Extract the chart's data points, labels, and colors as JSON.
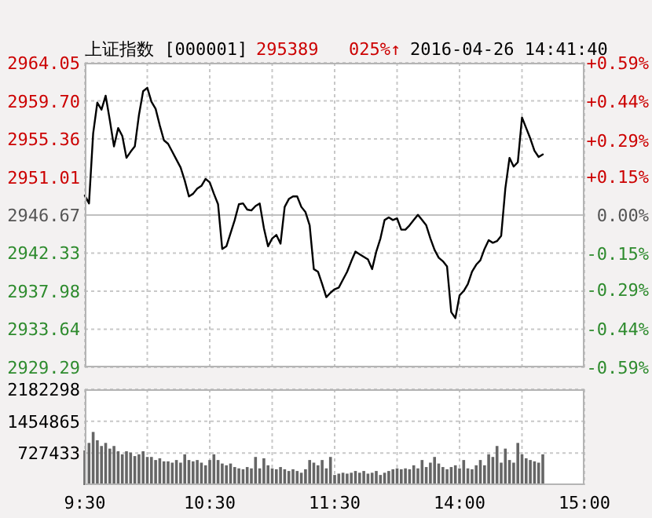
{
  "chart_data": [
    {
      "type": "line",
      "title": "上证指数 [000001]",
      "annotations": [
        "295389",
        "025%↑",
        "2016-04-26 14:41:40"
      ],
      "categories": [
        null,
        null,
        null,
        null,
        null,
        null,
        null,
        null,
        null,
        null,
        null,
        null,
        null,
        null,
        null,
        null,
        null,
        null,
        null,
        null,
        null,
        null,
        null,
        null,
        null,
        null,
        null,
        null,
        null,
        null,
        null,
        null,
        null,
        null,
        null,
        null,
        null,
        null,
        null,
        null,
        null,
        null,
        null,
        null,
        null,
        null,
        null,
        null,
        null,
        null,
        null,
        null,
        null,
        null,
        null,
        null,
        null,
        null,
        null,
        null,
        null,
        null,
        null,
        null,
        null,
        null,
        null,
        null,
        null,
        null,
        null,
        null,
        null,
        null,
        null,
        null,
        null,
        null,
        null,
        null,
        null,
        null,
        null,
        null,
        null,
        null,
        null,
        null,
        null,
        null,
        null,
        null,
        null,
        null,
        null,
        null,
        null,
        null,
        null,
        null,
        null,
        null,
        null,
        null,
        null,
        null,
        null,
        null,
        null,
        null,
        null,
        null,
        null,
        null,
        null,
        null,
        null,
        null,
        null,
        null,
        null
      ],
      "tick_labels": "y",
      "ylim": [
        2929.29,
        2964.05
      ],
      "yticks": [
        {
          "value": 2929.29,
          "label": "2929.29"
        },
        {
          "value": 2933.64,
          "label": "2933.64"
        },
        {
          "value": 2937.98,
          "label": "2937.98"
        },
        {
          "value": 2942.33,
          "label": "2942.33"
        },
        {
          "value": 2946.67,
          "label": "2946.67"
        },
        {
          "value": 2951.01,
          "label": "2951.01"
        },
        {
          "value": 2955.36,
          "label": "2955.36"
        },
        {
          "value": 2959.7,
          "label": "2959.70"
        },
        {
          "value": 2964.05,
          "label": "2964.05"
        }
      ],
      "y2lim": [
        -0.59,
        0.59
      ],
      "y2ticks": [
        {
          "value": -0.59,
          "label": "-0.59%"
        },
        {
          "value": -0.44,
          "label": "-0.44%"
        },
        {
          "value": -0.29,
          "label": "-0.29%"
        },
        {
          "value": -0.15,
          "label": "-0.15%"
        },
        {
          "value": 0,
          "label": "0.00%"
        },
        {
          "value": 0.15,
          "label": "+0.15%"
        },
        {
          "value": 0.29,
          "label": "+0.29%"
        },
        {
          "value": 0.44,
          "label": "+0.44%"
        },
        {
          "value": 0.59,
          "label": "+0.59%"
        }
      ],
      "grid": true,
      "ref_lines": [
        {
          "axis": "y",
          "value": 2946.67,
          "color": "#c0c0c0"
        }
      ],
      "series": [
        {
          "color": "#000000",
          "values": [
            2948.9,
            2948.0,
            2956.0,
            2959.5,
            2958.7,
            2960.3,
            2957.5,
            2954.5,
            2956.6,
            2955.7,
            2953.2,
            2953.9,
            2954.5,
            2958.1,
            2960.8,
            2961.2,
            2959.6,
            2958.8,
            2956.9,
            2955.2,
            2954.8,
            2953.9,
            2953.0,
            2952.1,
            2950.6,
            2948.8,
            2949.1,
            2949.7,
            2950.0,
            2950.8,
            2950.4,
            2949.1,
            2947.9,
            2942.8,
            2943.1,
            2944.6,
            2946.1,
            2947.9,
            2948.0,
            2947.3,
            2947.2,
            2947.7,
            2948.0,
            2945.2,
            2943.1,
            2944.0,
            2944.4,
            2943.4,
            2947.6,
            2948.5,
            2948.8,
            2948.8,
            2947.6,
            2947.0,
            2945.5,
            2940.5,
            2940.2,
            2938.8,
            2937.3,
            2937.8,
            2938.2,
            2938.4,
            2939.3,
            2940.2,
            2941.4,
            2942.5,
            2942.2,
            2941.9,
            2941.6,
            2940.5,
            2942.5,
            2944.0,
            2946.1,
            2946.4,
            2946.1,
            2946.3,
            2945.0,
            2945.0,
            2945.5,
            2946.1,
            2946.7,
            2946.1,
            2945.5,
            2944.0,
            2942.7,
            2941.8,
            2941.4,
            2940.8,
            2935.6,
            2934.9,
            2937.5,
            2938.0,
            2938.8,
            2940.2,
            2941.0,
            2941.5,
            2942.8,
            2943.8,
            2943.5,
            2943.7,
            2944.3,
            2949.7,
            2953.2,
            2952.2,
            2952.7,
            2957.8,
            2956.6,
            2955.4,
            2954.0,
            2953.3,
            2953.6,
            null,
            null,
            null,
            null,
            null,
            null,
            null,
            null,
            null,
            null
          ]
        }
      ]
    },
    {
      "type": "bar",
      "categories": [
        "9:30",
        null,
        null,
        null,
        null,
        null,
        null,
        null,
        null,
        null,
        null,
        null,
        null,
        null,
        null,
        null,
        null,
        null,
        null,
        null,
        null,
        null,
        null,
        null,
        null,
        null,
        null,
        null,
        null,
        null,
        "10:30",
        null,
        null,
        null,
        null,
        null,
        null,
        null,
        null,
        null,
        null,
        null,
        null,
        null,
        null,
        null,
        null,
        null,
        null,
        null,
        null,
        null,
        null,
        null,
        null,
        null,
        null,
        null,
        null,
        null,
        "11:30",
        null,
        null,
        null,
        null,
        null,
        null,
        null,
        null,
        null,
        null,
        null,
        null,
        null,
        null,
        null,
        null,
        null,
        null,
        null,
        null,
        null,
        null,
        null,
        null,
        null,
        null,
        null,
        null,
        null,
        "14:00",
        null,
        null,
        null,
        null,
        null,
        null,
        null,
        null,
        null,
        null,
        null,
        null,
        null,
        null,
        null,
        null,
        null,
        null,
        null,
        null,
        null,
        null,
        null,
        null,
        null,
        null,
        null,
        null,
        null,
        "15:00"
      ],
      "ylim": [
        0,
        2182298
      ],
      "yticks": [
        727433,
        1454865,
        2182298
      ],
      "grid": true,
      "series": [
        {
          "color": "#666666",
          "values": [
            790000,
            960000,
            1210000,
            1020000,
            890000,
            960000,
            830000,
            890000,
            770000,
            700000,
            770000,
            740000,
            660000,
            700000,
            770000,
            640000,
            640000,
            570000,
            610000,
            540000,
            540000,
            510000,
            570000,
            510000,
            700000,
            570000,
            540000,
            570000,
            510000,
            450000,
            570000,
            700000,
            570000,
            490000,
            450000,
            490000,
            410000,
            380000,
            360000,
            410000,
            380000,
            640000,
            380000,
            610000,
            450000,
            380000,
            360000,
            410000,
            360000,
            320000,
            360000,
            320000,
            280000,
            360000,
            570000,
            510000,
            450000,
            570000,
            380000,
            640000,
            230000,
            260000,
            280000,
            260000,
            280000,
            320000,
            280000,
            320000,
            260000,
            280000,
            320000,
            230000,
            280000,
            320000,
            360000,
            380000,
            360000,
            380000,
            360000,
            450000,
            380000,
            570000,
            410000,
            510000,
            640000,
            490000,
            410000,
            360000,
            410000,
            450000,
            380000,
            570000,
            380000,
            360000,
            450000,
            570000,
            450000,
            700000,
            640000,
            890000,
            510000,
            830000,
            570000,
            510000,
            960000,
            700000,
            610000,
            570000,
            540000,
            510000,
            700000,
            null,
            null,
            null,
            null,
            null,
            null,
            null,
            null,
            null,
            null
          ]
        }
      ]
    }
  ]
}
